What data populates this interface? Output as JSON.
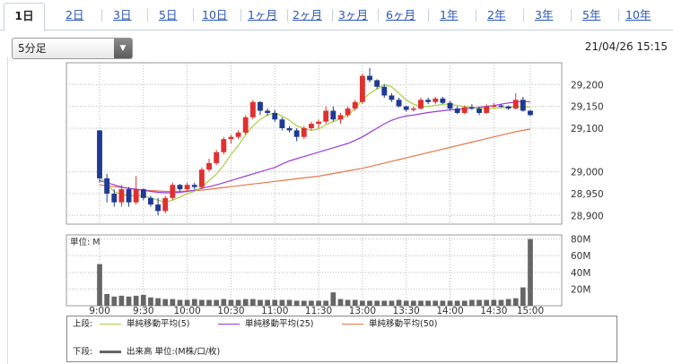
{
  "tabs": [
    "1日",
    "2日",
    "3日",
    "5日",
    "10日",
    "1ヶ月",
    "2ヶ月",
    "3ヶ月",
    "6ヶ月",
    "1年",
    "2年",
    "3年",
    "5年",
    "10年"
  ],
  "interval_select": {
    "value": "5分足"
  },
  "timestamp": "21/04/26 15:15",
  "colors": {
    "up": "#e03030",
    "down": "#1f3a93",
    "ma5": "#a8d040",
    "ma25": "#9a3ddb",
    "ma50": "#e8754a",
    "volume": "#666666",
    "grid": "#bbbbbb"
  },
  "chart_data": [
    {
      "type": "candlestick",
      "price_axis": {
        "ticks": [
          "29,200",
          "29,150",
          "29,100",
          "29,000",
          "28,950",
          "28,900"
        ],
        "ylim": [
          28880,
          29250
        ]
      },
      "time_axis": {
        "ticks": [
          "9:00",
          "9:30",
          "10:00",
          "10:30",
          "11:00",
          "11:30",
          "13:00",
          "13:30",
          "14:00",
          "14:30",
          "15:00"
        ]
      },
      "candles": [
        [
          29095,
          29095,
          28975,
          28985
        ],
        [
          28985,
          28995,
          28930,
          28950
        ],
        [
          28950,
          28960,
          28920,
          28930
        ],
        [
          28930,
          28970,
          28920,
          28960
        ],
        [
          28960,
          28965,
          28920,
          28930
        ],
        [
          28930,
          28990,
          28925,
          28960
        ],
        [
          28960,
          28962,
          28935,
          28940
        ],
        [
          28940,
          28945,
          28920,
          28925
        ],
        [
          28925,
          28940,
          28900,
          28910
        ],
        [
          28910,
          28945,
          28905,
          28940
        ],
        [
          28940,
          28975,
          28935,
          28970
        ],
        [
          28970,
          28972,
          28955,
          28960
        ],
        [
          28960,
          28975,
          28955,
          28970
        ],
        [
          28970,
          28975,
          28960,
          28965
        ],
        [
          28965,
          29010,
          28960,
          29005
        ],
        [
          29005,
          29030,
          29000,
          29020
        ],
        [
          29020,
          29050,
          29015,
          29045
        ],
        [
          29045,
          29080,
          29040,
          29075
        ],
        [
          29075,
          29085,
          29065,
          29080
        ],
        [
          29080,
          29095,
          29075,
          29090
        ],
        [
          29090,
          29130,
          29085,
          29125
        ],
        [
          29125,
          29165,
          29120,
          29160
        ],
        [
          29160,
          29162,
          29130,
          29140
        ],
        [
          29140,
          29145,
          29128,
          29135
        ],
        [
          29135,
          29142,
          29115,
          29120
        ],
        [
          29120,
          29125,
          29095,
          29100
        ],
        [
          29100,
          29105,
          29090,
          29095
        ],
        [
          29095,
          29100,
          29070,
          29080
        ],
        [
          29080,
          29105,
          29075,
          29100
        ],
        [
          29100,
          29115,
          29095,
          29110
        ],
        [
          29110,
          29120,
          29100,
          29115
        ],
        [
          29115,
          29150,
          29110,
          29140
        ],
        [
          29140,
          29150,
          29115,
          29120
        ],
        [
          29120,
          29135,
          29110,
          29130
        ],
        [
          29130,
          29150,
          29125,
          29145
        ],
        [
          29145,
          29165,
          29140,
          29160
        ],
        [
          29160,
          29225,
          29155,
          29220
        ],
        [
          29220,
          29238,
          29205,
          29210
        ],
        [
          29210,
          29212,
          29190,
          29195
        ],
        [
          29195,
          29200,
          29170,
          29175
        ],
        [
          29175,
          29180,
          29160,
          29165
        ],
        [
          29165,
          29170,
          29148,
          29150
        ],
        [
          29150,
          29152,
          29138,
          29142
        ],
        [
          29142,
          29150,
          29138,
          29145
        ],
        [
          29145,
          29170,
          29142,
          29165
        ],
        [
          29165,
          29170,
          29155,
          29160
        ],
        [
          29160,
          29172,
          29155,
          29168
        ],
        [
          29168,
          29172,
          29155,
          29158
        ],
        [
          29158,
          29162,
          29140,
          29145
        ],
        [
          29145,
          29150,
          29132,
          29135
        ],
        [
          29135,
          29152,
          29132,
          29148
        ],
        [
          29148,
          29155,
          29142,
          29145
        ],
        [
          29145,
          29148,
          29130,
          29135
        ],
        [
          29135,
          29155,
          29133,
          29150
        ],
        [
          29150,
          29158,
          29148,
          29152
        ],
        [
          29152,
          29155,
          29148,
          29150
        ],
        [
          29150,
          29152,
          29142,
          29145
        ],
        [
          29145,
          29180,
          29143,
          29165
        ],
        [
          29165,
          29172,
          29138,
          29140
        ],
        [
          29140,
          29142,
          29128,
          29130
        ]
      ],
      "ma5": [
        28990,
        28970,
        28955,
        28948,
        28945,
        28945,
        28945,
        28940,
        28935,
        28930,
        28935,
        28942,
        28950,
        28955,
        28965,
        28980,
        28995,
        29015,
        29040,
        29060,
        29085,
        29105,
        29120,
        29130,
        29135,
        29128,
        29118,
        29105,
        29100,
        29095,
        29098,
        29108,
        29115,
        29122,
        29130,
        29145,
        29165,
        29180,
        29190,
        29200,
        29195,
        29180,
        29165,
        29155,
        29150,
        29150,
        29152,
        29155,
        29155,
        29152,
        29150,
        29148,
        29145,
        29145,
        29146,
        29147,
        29148,
        29150,
        29150,
        29148
      ],
      "ma25": [
        28980,
        28975,
        28970,
        28965,
        28962,
        28960,
        28958,
        28955,
        28953,
        28952,
        28952,
        28953,
        28955,
        28958,
        28962,
        28966,
        28970,
        28975,
        28980,
        28985,
        28990,
        28995,
        29000,
        29005,
        29010,
        29018,
        29025,
        29030,
        29035,
        29040,
        29045,
        29050,
        29055,
        29060,
        29065,
        29072,
        29080,
        29090,
        29100,
        29110,
        29118,
        29124,
        29128,
        29130,
        29133,
        29136,
        29138,
        29140,
        29142,
        29143,
        29145,
        29146,
        29148,
        29150,
        29152,
        29155,
        29158,
        29160,
        29162,
        29160
      ],
      "ma50": [
        28970,
        28968,
        28966,
        28964,
        28962,
        28960,
        28958,
        28957,
        28956,
        28955,
        28955,
        28955,
        28956,
        28957,
        28958,
        28960,
        28962,
        28964,
        28966,
        28968,
        28970,
        28972,
        28974,
        28976,
        28978,
        28980,
        28982,
        28984,
        28986,
        28988,
        28990,
        28993,
        28996,
        28999,
        29002,
        29005,
        29008,
        29012,
        29016,
        29020,
        29024,
        29028,
        29032,
        29036,
        29040,
        29044,
        29048,
        29052,
        29056,
        29060,
        29064,
        29068,
        29072,
        29076,
        29080,
        29084,
        29088,
        29092,
        29095,
        29098
      ],
      "volume_axis": {
        "label": "単位: M",
        "ticks": [
          "80M",
          "60M",
          "40M",
          "20M"
        ],
        "ylim": [
          0,
          85
        ]
      },
      "volume": [
        50,
        14,
        11,
        12,
        11,
        12,
        13,
        10,
        9,
        8,
        8,
        7,
        7,
        8,
        7,
        7,
        7,
        8,
        7,
        7,
        8,
        8,
        7,
        7,
        7,
        7,
        7,
        6,
        6,
        6,
        6,
        6,
        16,
        8,
        7,
        7,
        6,
        6,
        6,
        6,
        6,
        7,
        6,
        6,
        6,
        6,
        6,
        6,
        6,
        6,
        6,
        7,
        7,
        7,
        7,
        7,
        8,
        9,
        22,
        80
      ]
    }
  ],
  "legend": {
    "upper_label": "上段:",
    "lower_label": "下段:",
    "ma5": "単純移動平均(5)",
    "ma25": "単純移動平均(25)",
    "ma50": "単純移動平均(50)",
    "volume": "出来高 単位:(M株/口/枚)"
  }
}
